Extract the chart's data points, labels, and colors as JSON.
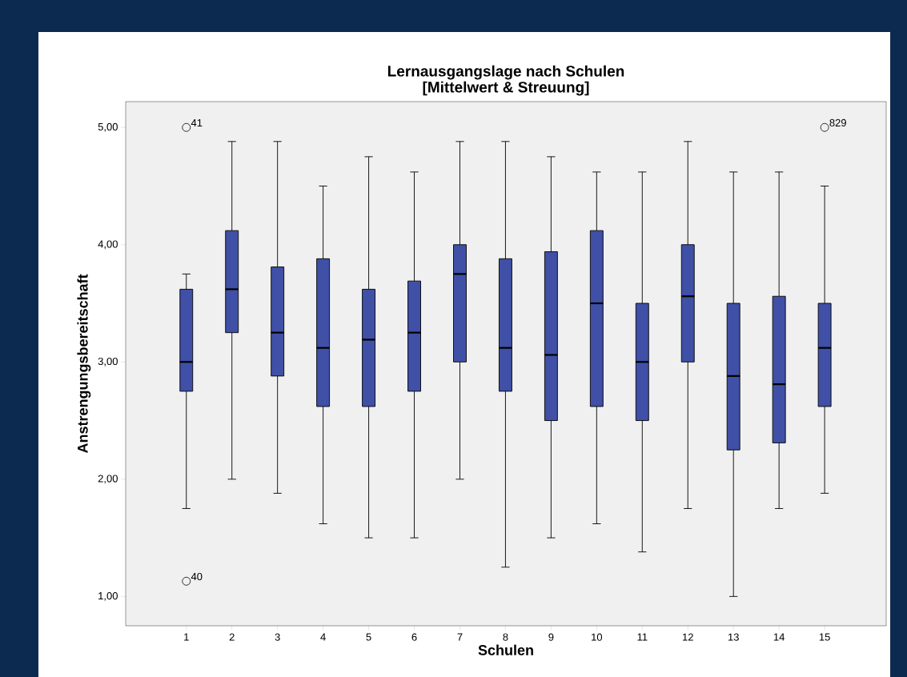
{
  "chart_data": {
    "type": "box",
    "title": "Lernausgangslage nach Schulen",
    "subtitle": "[Mittelwert & Streuung]",
    "xlabel": "Schulen",
    "ylabel": "Anstrengungsbereitschaft",
    "categories": [
      "1",
      "2",
      "3",
      "4",
      "5",
      "6",
      "7",
      "8",
      "9",
      "10",
      "11",
      "12",
      "13",
      "14",
      "15"
    ],
    "color": "#3f50a6",
    "boxes": [
      {
        "low": 1.75,
        "q1": 2.75,
        "median": 3.0,
        "q3": 3.62,
        "high": 3.75,
        "outliers": [
          5.0,
          1.13
        ]
      },
      {
        "low": 2.0,
        "q1": 3.25,
        "median": 3.62,
        "q3": 4.12,
        "high": 4.88
      },
      {
        "low": 1.88,
        "q1": 2.88,
        "median": 3.25,
        "q3": 3.81,
        "high": 4.88
      },
      {
        "low": 1.62,
        "q1": 2.62,
        "median": 3.12,
        "q3": 3.88,
        "high": 4.5
      },
      {
        "low": 1.5,
        "q1": 2.62,
        "median": 3.19,
        "q3": 3.62,
        "high": 4.75
      },
      {
        "low": 1.5,
        "q1": 2.75,
        "median": 3.25,
        "q3": 3.69,
        "high": 4.62
      },
      {
        "low": 2.0,
        "q1": 3.0,
        "median": 3.75,
        "q3": 4.0,
        "high": 4.88
      },
      {
        "low": 1.25,
        "q1": 2.75,
        "median": 3.12,
        "q3": 3.88,
        "high": 4.88
      },
      {
        "low": 1.5,
        "q1": 2.5,
        "median": 3.06,
        "q3": 3.94,
        "high": 4.75
      },
      {
        "low": 1.62,
        "q1": 2.62,
        "median": 3.5,
        "q3": 4.12,
        "high": 4.62
      },
      {
        "low": 1.38,
        "q1": 2.5,
        "median": 3.0,
        "q3": 3.5,
        "high": 4.62
      },
      {
        "low": 1.75,
        "q1": 3.0,
        "median": 3.56,
        "q3": 4.0,
        "high": 4.88
      },
      {
        "low": 1.0,
        "q1": 2.25,
        "median": 2.88,
        "q3": 3.5,
        "high": 4.62
      },
      {
        "low": 1.75,
        "q1": 2.31,
        "median": 2.81,
        "q3": 3.56,
        "high": 4.62
      },
      {
        "low": 1.88,
        "q1": 2.62,
        "median": 3.12,
        "q3": 3.5,
        "high": 4.5,
        "outliers": [
          5.0
        ]
      }
    ],
    "ylim": [
      0.75,
      5.22
    ],
    "yticks": [
      {
        "value": 1,
        "label": "1,00"
      },
      {
        "value": 2,
        "label": "2,00"
      },
      {
        "value": 3,
        "label": "3,00"
      },
      {
        "value": 4,
        "label": "4,00"
      },
      {
        "value": 5,
        "label": "5,00"
      }
    ],
    "annotations": [
      "41",
      "40",
      "829"
    ]
  }
}
